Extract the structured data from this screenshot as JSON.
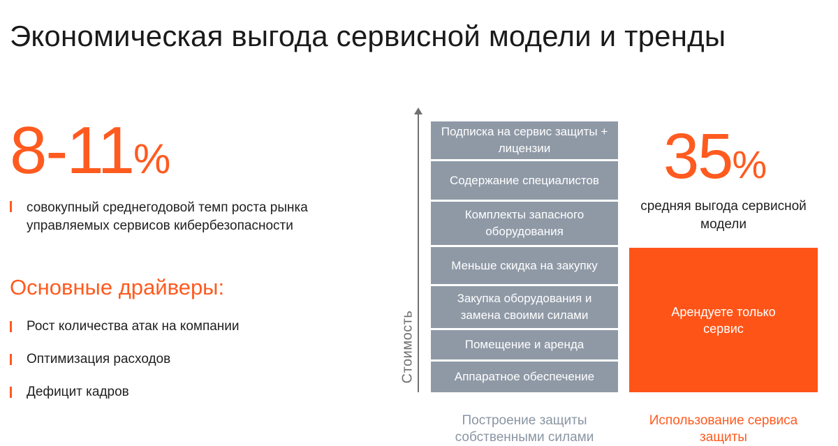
{
  "title": "Экономическая выгода сервисной модели и тренды",
  "growth": {
    "value": "8-11",
    "percent_sign": "%",
    "description": "совокупный среднегодовой темп роста рынка управляемых сервисов кибербезопасности"
  },
  "drivers": {
    "title": "Основные драйверы:",
    "items": [
      "Рост количества атак на компании",
      "Оптимизация расходов",
      "Дефицит кадров"
    ]
  },
  "cost_chart": {
    "axis_label": "Стоимость",
    "own_blocks": [
      "Подписка на сервис защиты + лицензии",
      "Содержание специалистов",
      "Комплекты запасного оборудования",
      "Меньше скидка на закупку",
      "Закупка оборудования и замена своими силами",
      "Помещение и аренда",
      "Аппаратное обеспечение"
    ],
    "own_caption": "Построение защиты собственными силами",
    "service_block": "Арендуете только сервис",
    "service_caption": "Использование сервиса защиты"
  },
  "savings": {
    "value": "35",
    "percent_sign": "%",
    "description": "средняя выгода сервисной модели"
  },
  "colors": {
    "accent": "#ff5a1f",
    "block_gray": "#8f99a6",
    "caption_gray": "#8a95a3"
  }
}
